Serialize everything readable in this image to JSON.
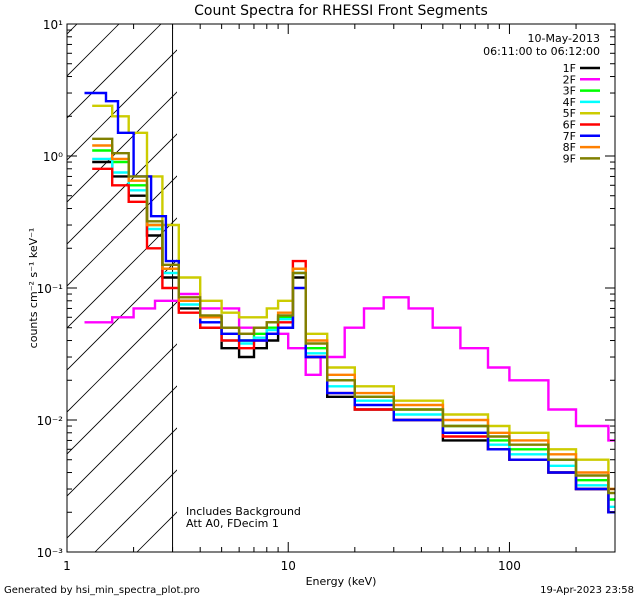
{
  "chart_data": {
    "type": "line",
    "title": "Count Spectra for RHESSI Front Segments",
    "xlabel": "Energy (keV)",
    "ylabel": "counts cm⁻² s⁻¹ keV⁻¹",
    "xscale": "log",
    "yscale": "log",
    "xlim": [
      1,
      300
    ],
    "ylim": [
      0.001,
      10
    ],
    "x_ticks": [
      {
        "value": 1,
        "label": "1"
      },
      {
        "value": 10,
        "label": "10"
      },
      {
        "value": 100,
        "label": "100"
      }
    ],
    "y_ticks": [
      {
        "value": 10,
        "label": "10¹"
      },
      {
        "value": 1,
        "label": "10⁰"
      },
      {
        "value": 0.1,
        "label": "10⁻¹"
      },
      {
        "value": 0.01,
        "label": "10⁻²"
      },
      {
        "value": 0.001,
        "label": "10⁻³"
      }
    ],
    "hatched_region": {
      "x_min": 1,
      "x_max": 3
    },
    "date_label": "10-May-2013",
    "time_range_label": "06:11:00 to 06:12:00",
    "annotations": [
      "Includes Background",
      "Att A0, FDecim 1"
    ],
    "legend_position": "top-right",
    "series": [
      {
        "name": "1F",
        "color": "#000000",
        "points": [
          [
            1.3,
            0.9
          ],
          [
            1.6,
            0.7
          ],
          [
            1.9,
            0.5
          ],
          [
            2.3,
            0.25
          ],
          [
            2.7,
            0.12
          ],
          [
            3.2,
            0.07
          ],
          [
            4,
            0.05
          ],
          [
            5,
            0.035
          ],
          [
            6,
            0.03
          ],
          [
            7,
            0.035
          ],
          [
            8,
            0.04
          ],
          [
            9,
            0.05
          ],
          [
            10.5,
            0.12
          ],
          [
            12,
            0.03
          ],
          [
            15,
            0.015
          ],
          [
            20,
            0.012
          ],
          [
            30,
            0.01
          ],
          [
            50,
            0.007
          ],
          [
            80,
            0.006
          ],
          [
            100,
            0.005
          ],
          [
            150,
            0.004
          ],
          [
            200,
            0.003
          ],
          [
            280,
            0.002
          ]
        ]
      },
      {
        "name": "2F",
        "color": "#ff00ff",
        "points": [
          [
            1.2,
            0.055
          ],
          [
            1.6,
            0.06
          ],
          [
            2,
            0.07
          ],
          [
            2.5,
            0.08
          ],
          [
            3.2,
            0.09
          ],
          [
            4,
            0.07
          ],
          [
            6,
            0.05
          ],
          [
            8,
            0.045
          ],
          [
            10,
            0.035
          ],
          [
            12,
            0.022
          ],
          [
            14,
            0.03
          ],
          [
            18,
            0.05
          ],
          [
            22,
            0.07
          ],
          [
            27,
            0.085
          ],
          [
            35,
            0.07
          ],
          [
            45,
            0.05
          ],
          [
            60,
            0.035
          ],
          [
            80,
            0.025
          ],
          [
            100,
            0.02
          ],
          [
            150,
            0.012
          ],
          [
            200,
            0.009
          ],
          [
            280,
            0.007
          ]
        ]
      },
      {
        "name": "3F",
        "color": "#00ff00",
        "points": [
          [
            1.3,
            1.1
          ],
          [
            1.6,
            0.9
          ],
          [
            1.9,
            0.6
          ],
          [
            2.3,
            0.3
          ],
          [
            2.7,
            0.14
          ],
          [
            3.2,
            0.08
          ],
          [
            4,
            0.06
          ],
          [
            5,
            0.045
          ],
          [
            6,
            0.04
          ],
          [
            7,
            0.045
          ],
          [
            8,
            0.05
          ],
          [
            9,
            0.06
          ],
          [
            10.5,
            0.14
          ],
          [
            12,
            0.035
          ],
          [
            15,
            0.02
          ],
          [
            20,
            0.015
          ],
          [
            30,
            0.012
          ],
          [
            50,
            0.009
          ],
          [
            80,
            0.007
          ],
          [
            100,
            0.006
          ],
          [
            150,
            0.005
          ],
          [
            200,
            0.0035
          ],
          [
            280,
            0.0025
          ]
        ]
      },
      {
        "name": "4F",
        "color": "#00ffff",
        "points": [
          [
            1.3,
            0.95
          ],
          [
            1.6,
            0.75
          ],
          [
            1.9,
            0.55
          ],
          [
            2.3,
            0.28
          ],
          [
            2.7,
            0.13
          ],
          [
            3.2,
            0.075
          ],
          [
            4,
            0.055
          ],
          [
            5,
            0.04
          ],
          [
            6,
            0.038
          ],
          [
            7,
            0.042
          ],
          [
            8,
            0.048
          ],
          [
            9,
            0.058
          ],
          [
            10.5,
            0.13
          ],
          [
            12,
            0.032
          ],
          [
            15,
            0.018
          ],
          [
            20,
            0.014
          ],
          [
            30,
            0.011
          ],
          [
            50,
            0.008
          ],
          [
            80,
            0.0065
          ],
          [
            100,
            0.0055
          ],
          [
            150,
            0.0045
          ],
          [
            200,
            0.0032
          ],
          [
            280,
            0.0022
          ]
        ]
      },
      {
        "name": "5F",
        "color": "#cccc00",
        "points": [
          [
            1.3,
            2.4
          ],
          [
            1.6,
            2
          ],
          [
            1.9,
            1.5
          ],
          [
            2.3,
            0.7
          ],
          [
            2.7,
            0.3
          ],
          [
            3.2,
            0.12
          ],
          [
            4,
            0.08
          ],
          [
            5,
            0.065
          ],
          [
            6,
            0.06
          ],
          [
            7,
            0.06
          ],
          [
            8,
            0.07
          ],
          [
            9,
            0.08
          ],
          [
            10.5,
            0.14
          ],
          [
            12,
            0.045
          ],
          [
            15,
            0.025
          ],
          [
            20,
            0.018
          ],
          [
            30,
            0.014
          ],
          [
            50,
            0.011
          ],
          [
            80,
            0.009
          ],
          [
            100,
            0.008
          ],
          [
            150,
            0.006
          ],
          [
            200,
            0.005
          ],
          [
            280,
            0.003
          ]
        ]
      },
      {
        "name": "6F",
        "color": "#ff0000",
        "points": [
          [
            1.3,
            0.8
          ],
          [
            1.6,
            0.6
          ],
          [
            1.9,
            0.45
          ],
          [
            2.3,
            0.2
          ],
          [
            2.7,
            0.1
          ],
          [
            3.2,
            0.065
          ],
          [
            4,
            0.05
          ],
          [
            5,
            0.04
          ],
          [
            6,
            0.035
          ],
          [
            7,
            0.04
          ],
          [
            8,
            0.045
          ],
          [
            9,
            0.055
          ],
          [
            10.5,
            0.16
          ],
          [
            12,
            0.03
          ],
          [
            15,
            0.016
          ],
          [
            20,
            0.012
          ],
          [
            30,
            0.01
          ],
          [
            50,
            0.0075
          ],
          [
            80,
            0.006
          ],
          [
            100,
            0.005
          ],
          [
            150,
            0.004
          ],
          [
            200,
            0.003
          ],
          [
            280,
            0.002
          ]
        ]
      },
      {
        "name": "7F",
        "color": "#0000ff",
        "points": [
          [
            1.2,
            3
          ],
          [
            1.5,
            2.6
          ],
          [
            1.7,
            1.5
          ],
          [
            2,
            0.7
          ],
          [
            2.4,
            0.35
          ],
          [
            2.8,
            0.16
          ],
          [
            3.2,
            0.08
          ],
          [
            4,
            0.055
          ],
          [
            5,
            0.045
          ],
          [
            6,
            0.04
          ],
          [
            7,
            0.04
          ],
          [
            8,
            0.045
          ],
          [
            9,
            0.05
          ],
          [
            10.5,
            0.1
          ],
          [
            12,
            0.03
          ],
          [
            15,
            0.016
          ],
          [
            20,
            0.013
          ],
          [
            30,
            0.01
          ],
          [
            50,
            0.008
          ],
          [
            80,
            0.006
          ],
          [
            100,
            0.005
          ],
          [
            150,
            0.004
          ],
          [
            200,
            0.003
          ],
          [
            280,
            0.002
          ]
        ]
      },
      {
        "name": "8F",
        "color": "#ff8000",
        "points": [
          [
            1.3,
            1.2
          ],
          [
            1.6,
            0.95
          ],
          [
            1.9,
            0.65
          ],
          [
            2.3,
            0.3
          ],
          [
            2.7,
            0.14
          ],
          [
            3.2,
            0.08
          ],
          [
            4,
            0.06
          ],
          [
            5,
            0.05
          ],
          [
            6,
            0.045
          ],
          [
            7,
            0.05
          ],
          [
            8,
            0.055
          ],
          [
            9,
            0.065
          ],
          [
            10.5,
            0.14
          ],
          [
            12,
            0.04
          ],
          [
            15,
            0.022
          ],
          [
            20,
            0.016
          ],
          [
            30,
            0.013
          ],
          [
            50,
            0.01
          ],
          [
            80,
            0.008
          ],
          [
            100,
            0.007
          ],
          [
            150,
            0.0055
          ],
          [
            200,
            0.004
          ],
          [
            280,
            0.003
          ]
        ]
      },
      {
        "name": "9F",
        "color": "#808000",
        "points": [
          [
            1.3,
            1.35
          ],
          [
            1.6,
            1.05
          ],
          [
            1.9,
            0.7
          ],
          [
            2.3,
            0.32
          ],
          [
            2.7,
            0.15
          ],
          [
            3.2,
            0.085
          ],
          [
            4,
            0.062
          ],
          [
            5,
            0.05
          ],
          [
            6,
            0.045
          ],
          [
            7,
            0.05
          ],
          [
            8,
            0.055
          ],
          [
            9,
            0.062
          ],
          [
            10.5,
            0.13
          ],
          [
            12,
            0.038
          ],
          [
            15,
            0.02
          ],
          [
            20,
            0.015
          ],
          [
            30,
            0.012
          ],
          [
            50,
            0.009
          ],
          [
            80,
            0.0075
          ],
          [
            100,
            0.0065
          ],
          [
            150,
            0.005
          ],
          [
            200,
            0.0038
          ],
          [
            280,
            0.0028
          ]
        ]
      }
    ]
  },
  "footer": {
    "left": "Generated by hsi_min_spectra_plot.pro",
    "right": "19-Apr-2023 23:58"
  }
}
